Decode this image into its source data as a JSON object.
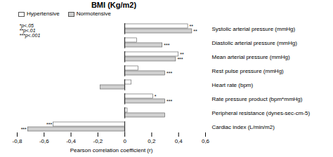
{
  "chart_data": {
    "type": "bar",
    "orientation": "horizontal",
    "title": "BMI (Kg/m2)",
    "xlabel": "Pearson correlation coefficient (r)",
    "xlim": [
      -0.8,
      0.6
    ],
    "xticks": [
      {
        "value": -0.8,
        "label": "-0,8"
      },
      {
        "value": -0.6,
        "label": "-0,6"
      },
      {
        "value": -0.4,
        "label": "-0,4"
      },
      {
        "value": -0.2,
        "label": "-0,2"
      },
      0,
      {
        "value": 0.2,
        "label": "0,2"
      },
      {
        "value": 0.4,
        "label": "0,4"
      },
      {
        "value": 0.6,
        "label": "0,6"
      }
    ],
    "categories": [
      "Systolic arterial pressure (mmHg)",
      "Diastolic arterial pressure (mmHg)",
      "Mean arterial pressure (mmHg)",
      "Rest pulse pressure (mmHg)",
      "Heart rate (bpm)",
      "Rate pressure product (bpm*mmHg)",
      "Peripheral resistance (dynes-sec-cm-5)",
      "Cardiac index (L/min/m2)"
    ],
    "series": [
      {
        "name": "Hypertensive",
        "color": "#ffffff",
        "values": [
          0.47,
          0.09,
          0.4,
          0.1,
          0.05,
          0.21,
          0.02,
          -0.53
        ],
        "significance": [
          "**",
          null,
          "**",
          null,
          null,
          "*",
          null,
          "***"
        ]
      },
      {
        "name": "Normotensive",
        "color": "#d0d0d0",
        "values": [
          0.5,
          0.28,
          0.38,
          0.3,
          -0.18,
          0.3,
          0.3,
          -0.72
        ],
        "significance": [
          "**",
          "***",
          "***",
          "***",
          null,
          "***",
          null,
          "***"
        ]
      }
    ],
    "annotation": "*p<.05\n**p<.01\n***p<.001",
    "legend": "upper left"
  }
}
